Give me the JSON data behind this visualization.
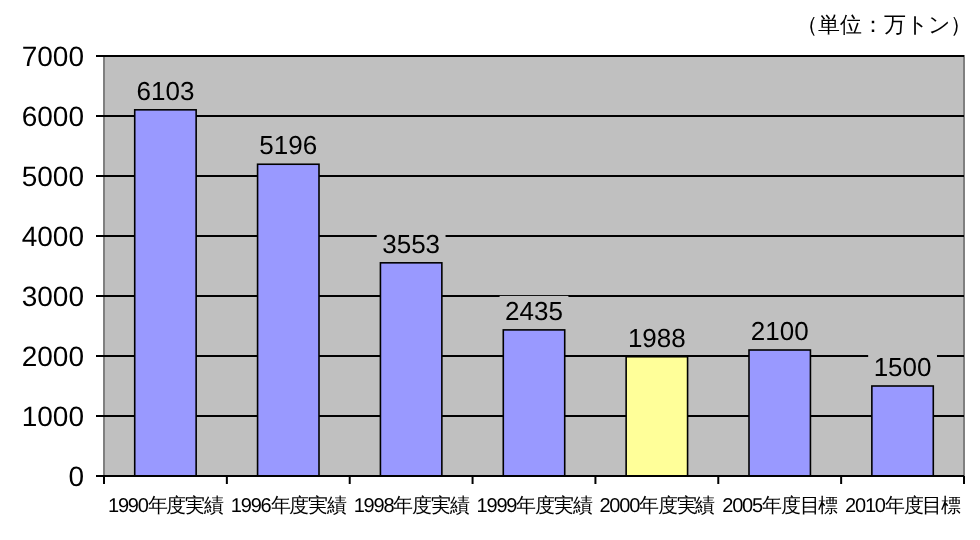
{
  "chart_data": {
    "type": "bar",
    "annotations": [
      "（単位：万トン）"
    ],
    "categories": [
      "1990年度実績",
      "1996年度実績",
      "1998年度実績",
      "1999年度実績",
      "2000年度実績",
      "2005年度目標",
      "2010年度目標"
    ],
    "values": [
      6103,
      5196,
      3553,
      2435,
      1988,
      2100,
      1500
    ],
    "colors": [
      "#9999ff",
      "#9999ff",
      "#9999ff",
      "#9999ff",
      "#ffff99",
      "#9999ff",
      "#9999ff"
    ],
    "ylim": [
      0,
      7000
    ],
    "yticks": [
      0,
      1000,
      2000,
      3000,
      4000,
      5000,
      6000,
      7000
    ],
    "grid": "y",
    "data_labels": true
  }
}
